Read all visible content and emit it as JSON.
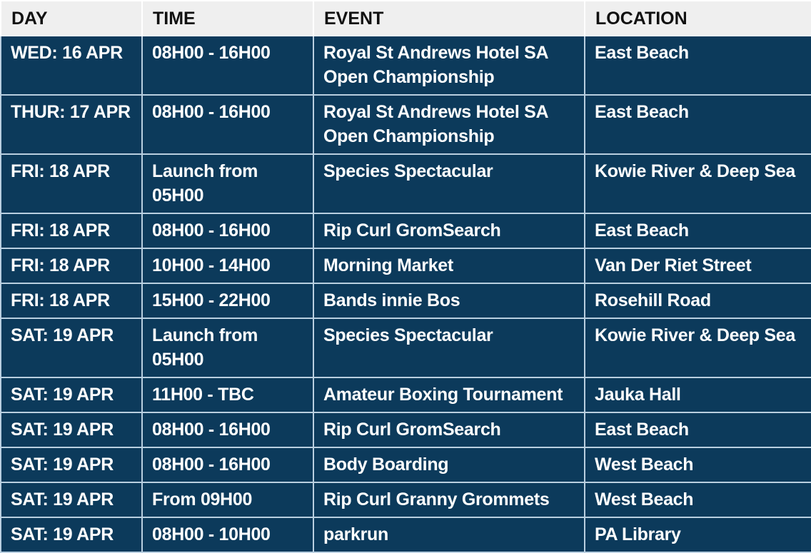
{
  "headers": [
    "DAY",
    "TIME",
    "EVENT",
    "LOCATION"
  ],
  "rows": [
    {
      "day": "WED: 16 APR",
      "time": "08H00 - 16H00",
      "event": "Royal St Andrews Hotel SA Open Championship",
      "location": "East Beach",
      "tall": 1
    },
    {
      "day": "THUR: 17 APR",
      "time": "08H00 - 16H00",
      "event": "Royal St Andrews Hotel SA Open Championship",
      "location": "East Beach",
      "tall": 1
    },
    {
      "day": "FRI: 18 APR",
      "time": "Launch from 05H00",
      "event": "Species Spectacular",
      "location": "Kowie River & Deep Sea",
      "tall": 1
    },
    {
      "day": "FRI: 18 APR",
      "time": "08H00 - 16H00",
      "event": "Rip Curl GromSearch",
      "location": "East Beach",
      "tall": 0
    },
    {
      "day": "FRI: 18 APR",
      "time": "10H00 - 14H00",
      "event": "Morning Market",
      "location": "Van Der Riet Street",
      "tall": 0
    },
    {
      "day": "FRI: 18 APR",
      "time": "15H00 - 22H00",
      "event": "Bands innie Bos",
      "location": "Rosehill Road",
      "tall": 0
    },
    {
      "day": "SAT: 19 APR",
      "time": "Launch from 05H00",
      "event": "Species Spectacular",
      "location": "Kowie River & Deep Sea",
      "tall": 1
    },
    {
      "day": "SAT: 19 APR",
      "time": "11H00 - TBC",
      "event": "Amateur Boxing Tournament",
      "location": "Jauka Hall",
      "tall": 0
    },
    {
      "day": "SAT: 19 APR",
      "time": "08H00 - 16H00",
      "event": "Rip Curl GromSearch",
      "location": "East Beach",
      "tall": 0
    },
    {
      "day": "SAT: 19 APR",
      "time": "08H00 - 16H00",
      "event": "Body Boarding",
      "location": "West Beach",
      "tall": 0
    },
    {
      "day": "SAT: 19 APR",
      "time": "From 09H00",
      "event": "Rip Curl Granny Grommets",
      "location": "West Beach",
      "tall": 0
    },
    {
      "day": "SAT: 19 APR",
      "time": "08H00 - 10H00",
      "event": "parkrun",
      "location": "PA Library",
      "tall": 0
    }
  ]
}
